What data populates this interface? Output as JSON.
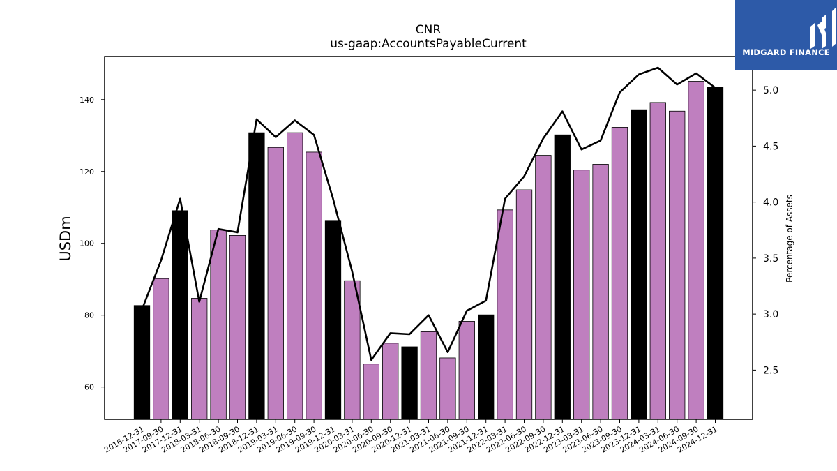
{
  "logo": {
    "text": "MIDGARD FINANCE",
    "background": "#2d5aa8"
  },
  "colors": {
    "annual_bar": "#000000",
    "quarter_bar": "#bf7fbf",
    "line": "#000000"
  },
  "chart_data": {
    "type": "bar",
    "title": "CNR",
    "subtitle": "us-gaap:AccountsPayableCurrent",
    "ylabel": "USDm",
    "y2label": "Percentage of Assets",
    "ylim": [
      51,
      152
    ],
    "y2lim": [
      2.06,
      5.3
    ],
    "yticks": [
      "60",
      "80",
      "100",
      "120",
      "140"
    ],
    "y2ticks": [
      "2.5",
      "3.0",
      "3.5",
      "4.0",
      "4.5",
      "5.0"
    ],
    "categories": [
      "2016-12-31",
      "2017-09-30",
      "2017-12-31",
      "2018-03-31",
      "2018-06-30",
      "2018-09-30",
      "2018-12-31",
      "2019-03-31",
      "2019-06-30",
      "2019-09-30",
      "2019-12-31",
      "2020-03-31",
      "2020-06-30",
      "2020-09-30",
      "2020-12-31",
      "2021-03-31",
      "2021-06-30",
      "2021-09-30",
      "2021-12-31",
      "2022-03-31",
      "2022-06-30",
      "2022-09-30",
      "2022-12-31",
      "2023-03-31",
      "2023-06-30",
      "2023-09-30",
      "2023-12-31",
      "2024-03-31",
      "2024-06-30",
      "2024-09-30",
      "2024-12-31"
    ],
    "series": [
      {
        "values": [
          82.7,
          90.2,
          109.1,
          84.7,
          103.7,
          102.2,
          130.8,
          126.7,
          130.8,
          125.4,
          106.2,
          89.6,
          66.4,
          72.2,
          71.2,
          75.4,
          68.1,
          78.3,
          80.1,
          109.3,
          114.9,
          124.5,
          130.2,
          120.4,
          122.0,
          132.3,
          137.2,
          139.2,
          136.8,
          145.1,
          143.5
        ],
        "annual": [
          true,
          false,
          true,
          false,
          false,
          false,
          true,
          false,
          false,
          false,
          true,
          false,
          false,
          false,
          true,
          false,
          false,
          false,
          true,
          false,
          false,
          false,
          true,
          false,
          false,
          false,
          true,
          false,
          false,
          false,
          true
        ]
      },
      {
        "axis": "right",
        "values": [
          3.04,
          3.48,
          4.03,
          3.11,
          3.76,
          3.73,
          4.74,
          4.58,
          4.73,
          4.6,
          4.03,
          3.38,
          2.59,
          2.83,
          2.82,
          2.99,
          2.66,
          3.03,
          3.12,
          4.03,
          4.23,
          4.57,
          4.81,
          4.47,
          4.55,
          4.98,
          5.14,
          5.2,
          5.05,
          5.15,
          5.02
        ]
      }
    ]
  }
}
